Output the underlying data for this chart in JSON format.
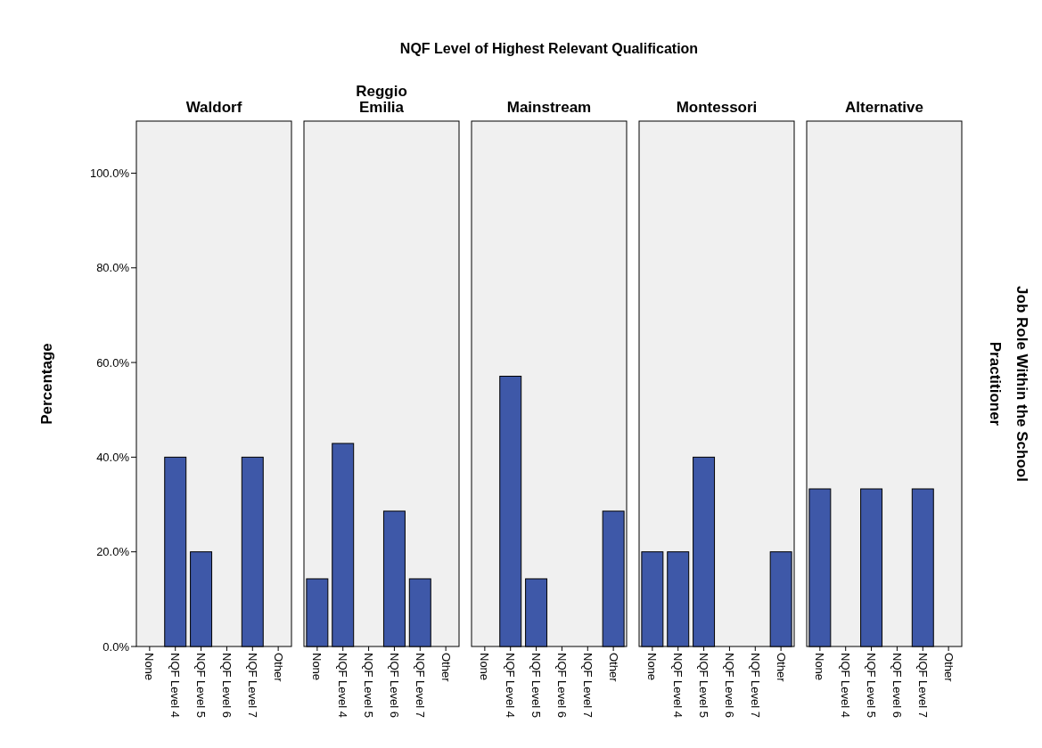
{
  "chart_data": [
    {
      "type": "bar",
      "title": "Waldorf",
      "ylabel": "Percentage",
      "categories": [
        "None",
        "NQF Level 4",
        "NQF Level 5",
        "NQF Level 6",
        "NQF Level 7",
        "Other"
      ],
      "values": [
        0,
        40,
        20,
        0,
        40,
        0
      ],
      "color": "#3e58a8",
      "ylim": [
        0,
        111
      ],
      "yticks": [
        {
          "value": 0,
          "label": "0.0%"
        },
        {
          "value": 20,
          "label": "20.0%"
        },
        {
          "value": 40,
          "label": "40.0%"
        },
        {
          "value": 60,
          "label": "60.0%"
        },
        {
          "value": 80,
          "label": "80.0%"
        },
        {
          "value": 100,
          "label": "100.0%"
        }
      ]
    },
    {
      "type": "bar",
      "title": "Reggio Emilia",
      "categories": [
        "None",
        "NQF Level 4",
        "NQF Level 5",
        "NQF Level 6",
        "NQF Level 7",
        "Other"
      ],
      "values": [
        14.3,
        42.9,
        0,
        28.6,
        14.3,
        0
      ],
      "color": "#3e58a8",
      "ylim": [
        0,
        111
      ],
      "tick_labels": "x"
    },
    {
      "type": "bar",
      "title": "Mainstream",
      "xlabel": "NQF Level of Highest Relevant Qualification",
      "categories": [
        "None",
        "NQF Level 4",
        "NQF Level 5",
        "NQF Level 6",
        "NQF Level 7",
        "Other"
      ],
      "values": [
        0,
        57.1,
        14.3,
        0,
        0,
        28.6
      ],
      "color": "#3e58a8",
      "ylim": [
        0,
        111
      ],
      "tick_labels": "x"
    },
    {
      "type": "bar",
      "title": "Montessori",
      "categories": [
        "None",
        "NQF Level 4",
        "NQF Level 5",
        "NQF Level 6",
        "NQF Level 7",
        "Other"
      ],
      "values": [
        20,
        20,
        40,
        0,
        0,
        20
      ],
      "color": "#3e58a8",
      "ylim": [
        0,
        111
      ],
      "tick_labels": "x"
    },
    {
      "type": "bar",
      "title": "Alternative",
      "y2label": "Job Role Within the School",
      "annotations": [
        "Practitioner"
      ],
      "categories": [
        "None",
        "NQF Level 4",
        "NQF Level 5",
        "NQF Level 6",
        "NQF Level 7",
        "Other"
      ],
      "values": [
        33.3,
        0,
        33.3,
        0,
        33.3,
        0
      ],
      "color": "#3e58a8",
      "ylim": [
        0,
        111
      ],
      "tick_labels": "x"
    }
  ]
}
